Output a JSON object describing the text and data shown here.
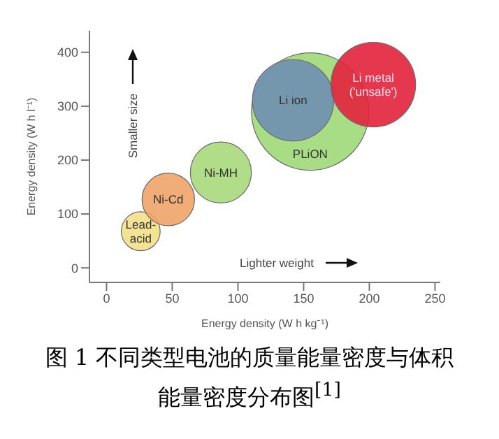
{
  "chart_data": {
    "type": "bubble",
    "xlabel": "Energy density (W h kg⁻¹)",
    "ylabel": "Energy density (W h l⁻¹)",
    "xlim": [
      -13,
      254
    ],
    "xticks": [
      0,
      50,
      100,
      150,
      200,
      250
    ],
    "ylim": [
      -27,
      440
    ],
    "yticks": [
      0,
      100,
      200,
      300,
      400
    ],
    "grid": false,
    "legend": false,
    "series": [
      {
        "name": "Lead-acid",
        "color": "#f3df8a",
        "x": [
          26
        ],
        "values": [
          68
        ],
        "sizes": [
          0.11
        ]
      },
      {
        "name": "Ni-Cd",
        "color": "#f0a468",
        "x": [
          47
        ],
        "values": [
          127
        ],
        "sizes": [
          0.2
        ]
      },
      {
        "name": "Ni-MH",
        "color": "#a9d97c",
        "x": [
          87
        ],
        "values": [
          177
        ],
        "sizes": [
          0.27
        ]
      },
      {
        "name": "PLiON",
        "color": "#9ed878",
        "x": [
          155
        ],
        "values": [
          290
        ],
        "sizes": [
          1
        ]
      },
      {
        "name": "Li ion",
        "color": "#6f8fb2",
        "x": [
          142
        ],
        "values": [
          311
        ],
        "sizes": [
          0.48
        ]
      },
      {
        "name": "Li metal ('unsafe')",
        "color": "#e2223c",
        "x": [
          203
        ],
        "values": [
          340
        ],
        "sizes": [
          0.52
        ]
      }
    ],
    "annotations": [
      "Smaller size",
      "Lighter weight",
      "图 1 不同类型电池的质量能量密度与体积能量密度分布图$^{[1]}$"
    ]
  }
}
